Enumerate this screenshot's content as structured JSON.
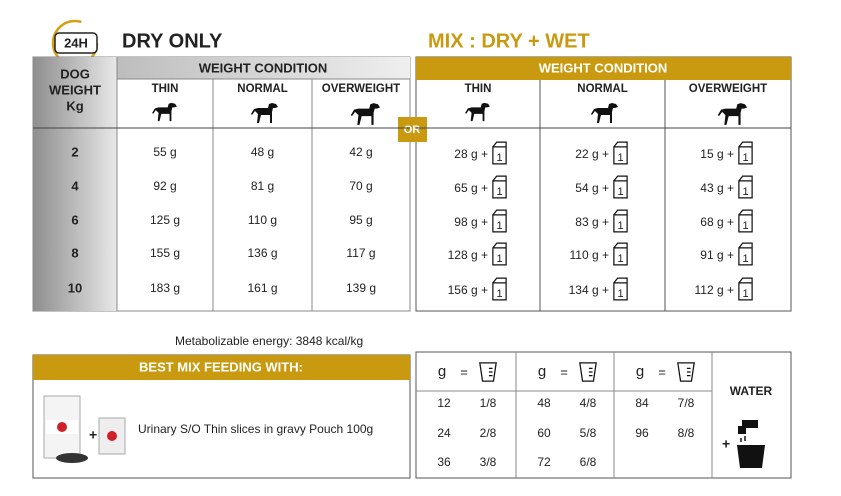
{
  "badge": "24H",
  "dry_only": {
    "title": "DRY ONLY",
    "weight_header": [
      "DOG",
      "WEIGHT",
      "Kg"
    ],
    "condition_header": "WEIGHT CONDITION",
    "columns": [
      "THIN",
      "NORMAL",
      "OVERWEIGHT"
    ],
    "rows": [
      {
        "weight": "2",
        "values": [
          "55 g",
          "48 g",
          "42 g"
        ]
      },
      {
        "weight": "4",
        "values": [
          "92 g",
          "81 g",
          "70 g"
        ]
      },
      {
        "weight": "6",
        "values": [
          "125 g",
          "110 g",
          "95 g"
        ]
      },
      {
        "weight": "8",
        "values": [
          "155 g",
          "136 g",
          "117 g"
        ]
      },
      {
        "weight": "10",
        "values": [
          "183 g",
          "161 g",
          "139 g"
        ]
      }
    ]
  },
  "or": "OR",
  "mix": {
    "title": "MIX : DRY + WET",
    "condition_header": "WEIGHT CONDITION",
    "columns": [
      "THIN",
      "NORMAL",
      "OVERWEIGHT"
    ],
    "pouch_label": "1",
    "rows": [
      [
        "28 g +",
        "22 g +",
        "15 g +"
      ],
      [
        "65 g +",
        "54 g +",
        "43 g +"
      ],
      [
        "98 g +",
        "83 g +",
        "68 g +"
      ],
      [
        "128 g +",
        "110 g +",
        "91 g +"
      ],
      [
        "156 g +",
        "134 g +",
        "112 g +"
      ]
    ]
  },
  "energy": "Metabolizable energy: 3848 kcal/kg",
  "best_mix": {
    "title": "BEST MIX FEEDING WITH:",
    "product": "Urinary S/O Thin slices in gravy Pouch 100g"
  },
  "conversion": {
    "unit": "g",
    "equals": "=",
    "groups": [
      {
        "rows": [
          [
            "12",
            "1/8"
          ],
          [
            "24",
            "2/8"
          ],
          [
            "36",
            "3/8"
          ]
        ]
      },
      {
        "rows": [
          [
            "48",
            "4/8"
          ],
          [
            "60",
            "5/8"
          ],
          [
            "72",
            "6/8"
          ]
        ]
      },
      {
        "rows": [
          [
            "84",
            "7/8"
          ],
          [
            "96",
            "8/8"
          ]
        ]
      }
    ],
    "water": "WATER"
  }
}
